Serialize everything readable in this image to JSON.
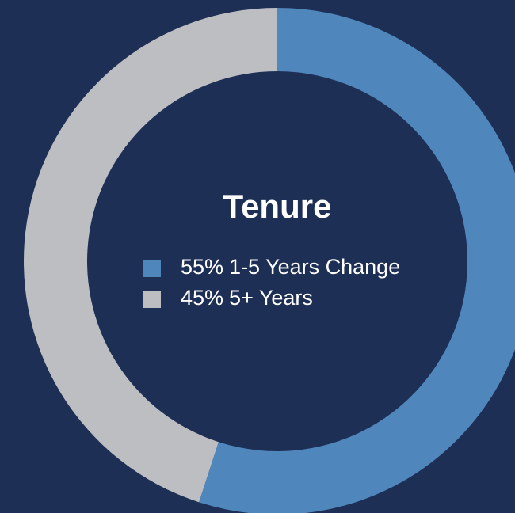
{
  "chart_data": {
    "type": "donut",
    "title": "Tenure",
    "categories": [
      "1-5 Years Change",
      "5+ Years"
    ],
    "values": [
      55,
      45
    ],
    "value_labels": [
      "55%",
      "45%"
    ],
    "colors": [
      "#4f86bc",
      "#bcbec2"
    ]
  }
}
